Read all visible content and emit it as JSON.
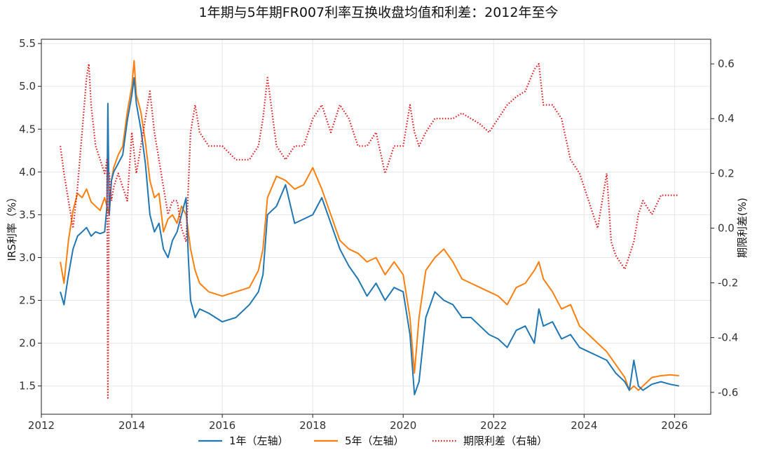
{
  "chart_data": {
    "type": "line",
    "title": "1年期与5年期FR007利率互换收盘均值和利差：2012年至今",
    "xlabel": "",
    "ylabel_left": "IRS利率（%）",
    "ylabel_right": "期限利差(%)",
    "xlim": [
      2012.0,
      2026.8
    ],
    "ylim_left": [
      1.17,
      5.55
    ],
    "ylim_right": [
      -0.68,
      0.69
    ],
    "x_ticks": [
      "2012",
      "2014",
      "2016",
      "2018",
      "2020",
      "2022",
      "2024",
      "2026"
    ],
    "y_left_ticks": [
      "1.5",
      "2.0",
      "2.5",
      "3.0",
      "3.5",
      "4.0",
      "4.5",
      "5.0",
      "5.5"
    ],
    "y_right_ticks": [
      "-0.6",
      "-0.4",
      "-0.2",
      "0.0",
      "0.2",
      "0.4",
      "0.6"
    ],
    "grid": true,
    "legend_position": "bottom",
    "series": [
      {
        "name": "1年（左轴）",
        "axis": "left",
        "color": "#1f77b4",
        "style": "solid",
        "x": [
          2012.42,
          2012.5,
          2012.6,
          2012.7,
          2012.8,
          2012.9,
          2013.0,
          2013.1,
          2013.2,
          2013.3,
          2013.4,
          2013.45,
          2013.47,
          2013.5,
          2013.55,
          2013.6,
          2013.7,
          2013.8,
          2013.9,
          2014.0,
          2014.05,
          2014.1,
          2014.2,
          2014.3,
          2014.4,
          2014.5,
          2014.6,
          2014.7,
          2014.8,
          2014.9,
          2015.0,
          2015.1,
          2015.2,
          2015.25,
          2015.3,
          2015.4,
          2015.5,
          2015.7,
          2016.0,
          2016.3,
          2016.6,
          2016.8,
          2016.9,
          2017.0,
          2017.2,
          2017.4,
          2017.6,
          2017.8,
          2018.0,
          2018.2,
          2018.4,
          2018.6,
          2018.8,
          2019.0,
          2019.2,
          2019.4,
          2019.6,
          2019.8,
          2020.0,
          2020.15,
          2020.25,
          2020.35,
          2020.5,
          2020.7,
          2020.9,
          2021.1,
          2021.3,
          2021.5,
          2021.7,
          2021.9,
          2022.1,
          2022.3,
          2022.5,
          2022.7,
          2022.9,
          2023.0,
          2023.1,
          2023.3,
          2023.5,
          2023.7,
          2023.9,
          2024.1,
          2024.3,
          2024.5,
          2024.7,
          2024.9,
          2025.0,
          2025.1,
          2025.2,
          2025.3,
          2025.5,
          2025.7,
          2025.9,
          2026.1
        ],
        "values": [
          2.6,
          2.45,
          2.8,
          3.1,
          3.25,
          3.3,
          3.35,
          3.25,
          3.3,
          3.28,
          3.3,
          3.6,
          4.8,
          3.5,
          3.9,
          4.0,
          4.1,
          4.2,
          4.6,
          4.9,
          5.1,
          4.8,
          4.5,
          4.1,
          3.5,
          3.3,
          3.4,
          3.1,
          3.0,
          3.2,
          3.3,
          3.5,
          3.7,
          3.0,
          2.5,
          2.3,
          2.4,
          2.35,
          2.25,
          2.3,
          2.45,
          2.6,
          2.8,
          3.5,
          3.6,
          3.85,
          3.4,
          3.45,
          3.5,
          3.7,
          3.4,
          3.1,
          2.9,
          2.75,
          2.55,
          2.7,
          2.5,
          2.65,
          2.6,
          2.1,
          1.4,
          1.55,
          2.3,
          2.6,
          2.5,
          2.45,
          2.3,
          2.3,
          2.2,
          2.1,
          2.05,
          1.95,
          2.15,
          2.2,
          2.0,
          2.4,
          2.2,
          2.25,
          2.05,
          2.1,
          1.95,
          1.9,
          1.85,
          1.8,
          1.65,
          1.55,
          1.45,
          1.8,
          1.5,
          1.45,
          1.52,
          1.55,
          1.52,
          1.5
        ]
      },
      {
        "name": "5年（左轴）",
        "axis": "left",
        "color": "#ff7f0e",
        "style": "solid",
        "x": [
          2012.42,
          2012.5,
          2012.6,
          2012.7,
          2012.8,
          2012.9,
          2013.0,
          2013.1,
          2013.2,
          2013.3,
          2013.4,
          2013.5,
          2013.55,
          2013.6,
          2013.7,
          2013.8,
          2013.9,
          2014.0,
          2014.05,
          2014.1,
          2014.2,
          2014.3,
          2014.4,
          2014.5,
          2014.6,
          2014.7,
          2014.8,
          2014.9,
          2015.0,
          2015.1,
          2015.2,
          2015.3,
          2015.4,
          2015.5,
          2015.7,
          2016.0,
          2016.3,
          2016.6,
          2016.8,
          2016.9,
          2017.0,
          2017.2,
          2017.4,
          2017.6,
          2017.8,
          2018.0,
          2018.2,
          2018.4,
          2018.6,
          2018.8,
          2019.0,
          2019.2,
          2019.4,
          2019.6,
          2019.8,
          2020.0,
          2020.15,
          2020.25,
          2020.35,
          2020.5,
          2020.7,
          2020.9,
          2021.1,
          2021.3,
          2021.5,
          2021.7,
          2021.9,
          2022.1,
          2022.3,
          2022.5,
          2022.7,
          2022.9,
          2023.0,
          2023.1,
          2023.3,
          2023.5,
          2023.7,
          2023.9,
          2024.1,
          2024.3,
          2024.5,
          2024.7,
          2024.9,
          2025.0,
          2025.1,
          2025.2,
          2025.3,
          2025.5,
          2025.7,
          2025.9,
          2026.1
        ],
        "values": [
          2.95,
          2.7,
          3.2,
          3.55,
          3.75,
          3.7,
          3.8,
          3.65,
          3.6,
          3.55,
          3.7,
          3.5,
          3.9,
          4.05,
          4.2,
          4.3,
          4.7,
          5.0,
          5.3,
          4.9,
          4.7,
          4.35,
          3.9,
          3.7,
          3.75,
          3.3,
          3.45,
          3.5,
          3.4,
          3.6,
          3.5,
          3.1,
          2.85,
          2.7,
          2.6,
          2.55,
          2.6,
          2.65,
          2.85,
          3.1,
          3.7,
          3.95,
          3.9,
          3.8,
          3.85,
          4.05,
          3.8,
          3.5,
          3.2,
          3.1,
          3.05,
          2.95,
          3.0,
          2.8,
          2.95,
          2.8,
          2.3,
          1.65,
          2.3,
          2.85,
          3.0,
          3.1,
          2.95,
          2.75,
          2.7,
          2.65,
          2.6,
          2.55,
          2.45,
          2.65,
          2.7,
          2.85,
          2.95,
          2.75,
          2.6,
          2.4,
          2.45,
          2.2,
          2.1,
          2.0,
          1.9,
          1.75,
          1.6,
          1.45,
          1.5,
          1.45,
          1.5,
          1.6,
          1.62,
          1.63,
          1.62
        ]
      },
      {
        "name": "期限利差（右轴）",
        "axis": "right",
        "color": "#e8151b",
        "style": "dotted",
        "x": [
          2012.42,
          2012.5,
          2012.6,
          2012.7,
          2012.8,
          2012.9,
          2013.0,
          2013.05,
          2013.1,
          2013.2,
          2013.3,
          2013.4,
          2013.45,
          2013.47,
          2013.5,
          2013.55,
          2013.6,
          2013.7,
          2013.8,
          2013.9,
          2014.0,
          2014.1,
          2014.2,
          2014.3,
          2014.4,
          2014.5,
          2014.6,
          2014.7,
          2014.8,
          2014.9,
          2015.0,
          2015.1,
          2015.2,
          2015.3,
          2015.4,
          2015.5,
          2015.7,
          2016.0,
          2016.3,
          2016.6,
          2016.8,
          2016.9,
          2017.0,
          2017.2,
          2017.4,
          2017.6,
          2017.8,
          2018.0,
          2018.2,
          2018.4,
          2018.6,
          2018.8,
          2019.0,
          2019.2,
          2019.4,
          2019.6,
          2019.8,
          2020.0,
          2020.15,
          2020.25,
          2020.35,
          2020.5,
          2020.7,
          2020.9,
          2021.1,
          2021.3,
          2021.5,
          2021.7,
          2021.9,
          2022.1,
          2022.3,
          2022.5,
          2022.7,
          2022.9,
          2023.0,
          2023.1,
          2023.3,
          2023.5,
          2023.7,
          2023.9,
          2024.1,
          2024.3,
          2024.5,
          2024.6,
          2024.7,
          2024.9,
          2025.0,
          2025.1,
          2025.2,
          2025.3,
          2025.5,
          2025.7,
          2025.9,
          2026.1
        ],
        "values": [
          0.3,
          0.2,
          0.1,
          0.0,
          0.15,
          0.35,
          0.55,
          0.6,
          0.45,
          0.3,
          0.25,
          0.2,
          0.25,
          -0.62,
          0.2,
          0.1,
          0.15,
          0.2,
          0.15,
          0.1,
          0.35,
          0.2,
          0.3,
          0.4,
          0.5,
          0.35,
          0.25,
          0.15,
          0.05,
          0.1,
          0.1,
          0.0,
          -0.05,
          0.35,
          0.45,
          0.35,
          0.3,
          0.3,
          0.25,
          0.25,
          0.3,
          0.4,
          0.55,
          0.3,
          0.25,
          0.3,
          0.3,
          0.4,
          0.45,
          0.35,
          0.45,
          0.4,
          0.3,
          0.3,
          0.35,
          0.2,
          0.3,
          0.3,
          0.45,
          0.35,
          0.3,
          0.35,
          0.4,
          0.4,
          0.4,
          0.42,
          0.4,
          0.38,
          0.35,
          0.4,
          0.45,
          0.48,
          0.5,
          0.58,
          0.6,
          0.45,
          0.45,
          0.4,
          0.25,
          0.2,
          0.1,
          0.0,
          0.2,
          -0.05,
          -0.1,
          -0.15,
          -0.1,
          -0.05,
          0.05,
          0.1,
          0.05,
          0.12,
          0.12,
          0.12
        ]
      }
    ]
  }
}
